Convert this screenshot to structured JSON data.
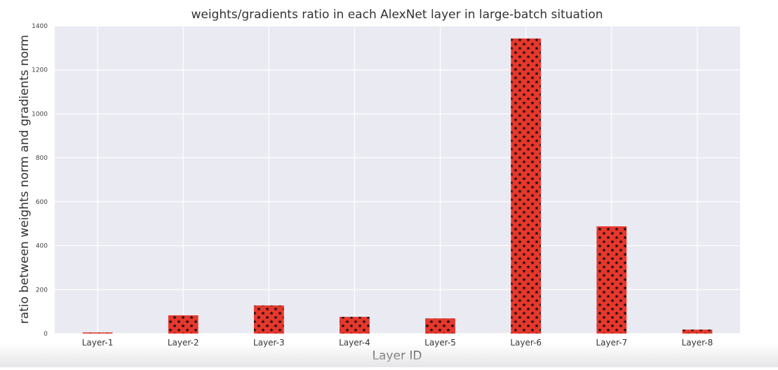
{
  "chart_data": {
    "type": "bar",
    "title": "weights/gradients ratio in each AlexNet layer in large-batch situation",
    "xlabel": "Layer ID",
    "ylabel": "ratio between weights norm and gradients norm",
    "categories": [
      "Layer-1",
      "Layer-2",
      "Layer-3",
      "Layer-4",
      "Layer-5",
      "Layer-6",
      "Layer-7",
      "Layer-8"
    ],
    "values": [
      5,
      83,
      128,
      76,
      69,
      1343,
      488,
      18
    ],
    "ylim": [
      0,
      1400
    ],
    "yticks": [
      0,
      200,
      400,
      600,
      800,
      1000,
      1200,
      1400
    ],
    "grid": true,
    "bar_color": "#e8372c",
    "hatch": "black star markers",
    "background_color": "#eaeaf2"
  }
}
